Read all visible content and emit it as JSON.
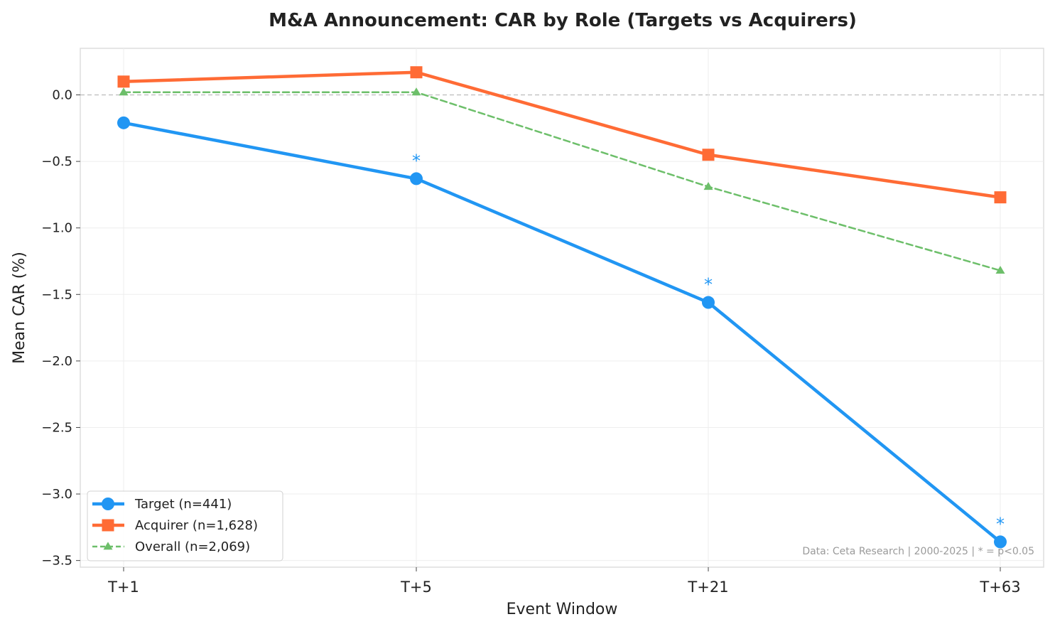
{
  "chart_data": {
    "type": "line",
    "title": "M&A Announcement: CAR by Role (Targets vs Acquirers)",
    "xlabel": "Event Window",
    "ylabel": "Mean CAR (%)",
    "categories": [
      "T+1",
      "T+5",
      "T+21",
      "T+63"
    ],
    "ylim": [
      -3.55,
      0.35
    ],
    "yticks": [
      0.0,
      -0.5,
      -1.0,
      -1.5,
      -2.0,
      -2.5,
      -3.0,
      -3.5
    ],
    "ytick_labels": [
      "0.0",
      "−0.5",
      "−1.0",
      "−1.5",
      "−2.0",
      "−2.5",
      "−3.0",
      "−3.5"
    ],
    "grid": true,
    "zero_line": true,
    "legend_position": "lower-left",
    "series": [
      {
        "name": "Target (n=441)",
        "values": [
          -0.21,
          -0.63,
          -1.56,
          -3.36
        ],
        "color": "#2196F3",
        "marker": "circle",
        "style": "solid",
        "significant": [
          false,
          true,
          true,
          true
        ]
      },
      {
        "name": "Acquirer (n=1,628)",
        "values": [
          0.1,
          0.17,
          -0.45,
          -0.77
        ],
        "color": "#FF6B35",
        "marker": "square",
        "style": "solid",
        "significant": [
          false,
          false,
          false,
          false
        ]
      },
      {
        "name": "Overall (n=2,069)",
        "values": [
          0.02,
          0.02,
          -0.69,
          -1.32
        ],
        "color": "#6DBF6A",
        "marker": "triangle",
        "style": "dashed",
        "significant": [
          false,
          false,
          false,
          false
        ]
      }
    ],
    "significance_marker": "*",
    "note": "Data: Ceta Research | 2000-2025 | * = p<0.05"
  }
}
